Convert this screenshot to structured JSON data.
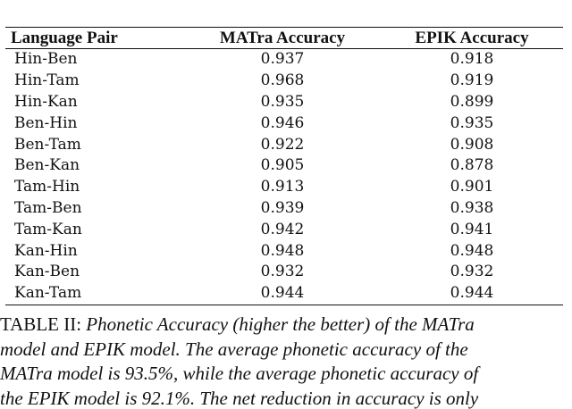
{
  "table": {
    "headers": [
      "Language Pair",
      "MATra Accuracy",
      "EPIK Accuracy"
    ],
    "rows": [
      [
        "Hin-Ben",
        "0.937",
        "0.918"
      ],
      [
        "Hin-Tam",
        "0.968",
        "0.919"
      ],
      [
        "Hin-Kan",
        "0.935",
        "0.899"
      ],
      [
        "Ben-Hin",
        "0.946",
        "0.935"
      ],
      [
        "Ben-Tam",
        "0.922",
        "0.908"
      ],
      [
        "Ben-Kan",
        "0.905",
        "0.878"
      ],
      [
        "Tam-Hin",
        "0.913",
        "0.901"
      ],
      [
        "Tam-Ben",
        "0.939",
        "0.938"
      ],
      [
        "Tam-Kan",
        "0.942",
        "0.941"
      ],
      [
        "Kan-Hin",
        "0.948",
        "0.948"
      ],
      [
        "Kan-Ben",
        "0.932",
        "0.932"
      ],
      [
        "Kan-Tam",
        "0.944",
        "0.944"
      ]
    ]
  },
  "caption": {
    "label": "TABLE II: ",
    "line1_italic": "Phonetic Accuracy (higher the better) of the MATra",
    "line2": "model and EPIK model. The average phonetic accuracy of the",
    "line3": "MATra model is 93.5%, while the average phonetic accuracy of",
    "line4": "the EPIK model is 92.1%. The net reduction in accuracy is only"
  }
}
